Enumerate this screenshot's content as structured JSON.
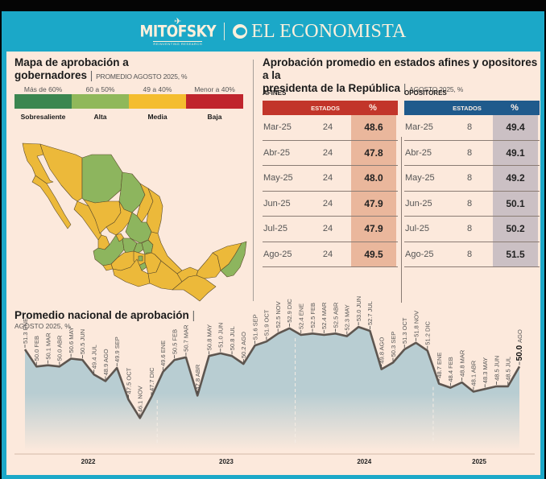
{
  "header": {
    "brand_left": "MITOFSKY",
    "brand_left_tagline": "REINVENTING RESEARCH",
    "brand_right": "EL ECONOMISTA"
  },
  "map_section": {
    "title_line1": "Mapa de aprobación a",
    "title_line2": "gobernadores",
    "subtitle": "PROMEDIO AGOSTO 2025, %",
    "legend": [
      {
        "range": "Más de 60%",
        "name": "Sobresaliente",
        "color": "#3b8650"
      },
      {
        "range": "60 a 50%",
        "name": "Alta",
        "color": "#90b85a"
      },
      {
        "range": "49 a 40%",
        "name": "Media",
        "color": "#f4bd2f"
      },
      {
        "range": "Menor a 40%",
        "name": "Baja",
        "color": "#c0252d"
      }
    ],
    "map_colors": {
      "alta": "#8db55e",
      "media": "#ecb93a",
      "border": "#5a4a2a"
    }
  },
  "tables_section": {
    "title_line1": "Aprobación promedio en estados afines y opositores a la",
    "title_line2": "presidenta de la República",
    "subtitle": "AGOSTO 2025, %",
    "afines": {
      "label": "AFINES",
      "header_color": "#c2352a",
      "cell_color": "#eab79c",
      "col_estados": "ESTADOS",
      "col_pct": "%",
      "rows": [
        {
          "month": "Mar-25",
          "estados": "24",
          "pct": "48.6"
        },
        {
          "month": "Abr-25",
          "estados": "24",
          "pct": "47.8"
        },
        {
          "month": "May-25",
          "estados": "24",
          "pct": "48.0"
        },
        {
          "month": "Jun-25",
          "estados": "24",
          "pct": "47.9"
        },
        {
          "month": "Jul-25",
          "estados": "24",
          "pct": "47.9"
        },
        {
          "month": "Ago-25",
          "estados": "24",
          "pct": "49.5"
        }
      ]
    },
    "opositores": {
      "label": "OPOSITORES",
      "header_color": "#1f5a8c",
      "cell_color": "#cbc0c4",
      "col_estados": "ESTADOS",
      "col_pct": "%",
      "rows": [
        {
          "month": "Mar-25",
          "estados": "8",
          "pct": "49.4"
        },
        {
          "month": "Abr-25",
          "estados": "8",
          "pct": "49.1"
        },
        {
          "month": "May-25",
          "estados": "8",
          "pct": "49.2"
        },
        {
          "month": "Jun-25",
          "estados": "8",
          "pct": "50.1"
        },
        {
          "month": "Jul-25",
          "estados": "8",
          "pct": "50.2"
        },
        {
          "month": "Ago-25",
          "estados": "8",
          "pct": "51.5"
        }
      ]
    }
  },
  "chart_data": {
    "type": "area",
    "title": "Promedio nacional de aprobación",
    "subtitle": "AGOSTO 2025, %",
    "xlabel": "",
    "ylabel": "",
    "grid": false,
    "years": [
      "2022",
      "2023",
      "2024",
      "2025"
    ],
    "line_color": "#5e5650",
    "fill_color": "#b8cdd2",
    "x": [
      "ENE",
      "FEB",
      "MAR",
      "ABR",
      "MAY",
      "JUN",
      "JUL",
      "AGO",
      "SEP",
      "OCT",
      "NOV",
      "DIC",
      "ENE",
      "FEB",
      "MAR",
      "ABR",
      "MAY",
      "JUN",
      "JUL",
      "AGO",
      "SEP",
      "OCT",
      "NOV",
      "DIC",
      "ENE",
      "FEB",
      "MAR",
      "ABR",
      "MAY",
      "JUN",
      "JUL",
      "AGO",
      "SEP",
      "OCT",
      "NOV",
      "DIC",
      "ENE",
      "FEB",
      "MAR",
      "ABR",
      "MAY",
      "JUN",
      "JUL",
      "AGO"
    ],
    "values": [
      51.3,
      50.0,
      50.1,
      50.0,
      50.6,
      50.5,
      49.4,
      48.9,
      49.9,
      47.5,
      46.1,
      47.7,
      49.6,
      50.5,
      50.7,
      47.8,
      50.8,
      51.0,
      50.8,
      50.2,
      51.6,
      51.9,
      52.5,
      52.9,
      52.4,
      52.5,
      52.4,
      52.5,
      52.3,
      53.0,
      52.7,
      49.8,
      50.3,
      51.3,
      51.8,
      51.2,
      48.7,
      48.4,
      48.8,
      48.1,
      48.3,
      48.5,
      48.5,
      50.0
    ],
    "labels": [
      "51.3 ENE",
      "50.0 FEB",
      "50.1 MAR",
      "50.0 ABR",
      "50.6 MAY",
      "50.5 JUN",
      "49.4 JUL",
      "48.9 AGO",
      "49.9 SEP",
      "47.5 OCT",
      "46.1 NOV",
      "47.7 DIC",
      "49.6 ENE",
      "50.5 FEB",
      "50.7 MAR",
      "47.8 ABR",
      "50.8 MAY",
      "51.0 JUN",
      "50.8 JUL",
      "50.2 AGO",
      "51.6 SEP",
      "51.9 OCT",
      "52.5 NOV",
      "52.9 DIC",
      "52.4 ENE",
      "52.5 FEB",
      "52.4 MAR",
      "52.5 ABR",
      "52.3 MAY",
      "53.0 JUN",
      "52.7 JUL",
      "49.8 AGO",
      "50.3 SEP",
      "51.3 OCT",
      "51.8 NOV",
      "51.2 DIC",
      "48.7 ENE",
      "48.4 FEB",
      "48.8 MAR",
      "48.1 ABR",
      "48.3 MAY",
      "48.5 JUN",
      "48.5 JUL",
      "50.0 AGO"
    ],
    "highlighted_last": "50.0",
    "highlighted_last_month": "AGO"
  }
}
